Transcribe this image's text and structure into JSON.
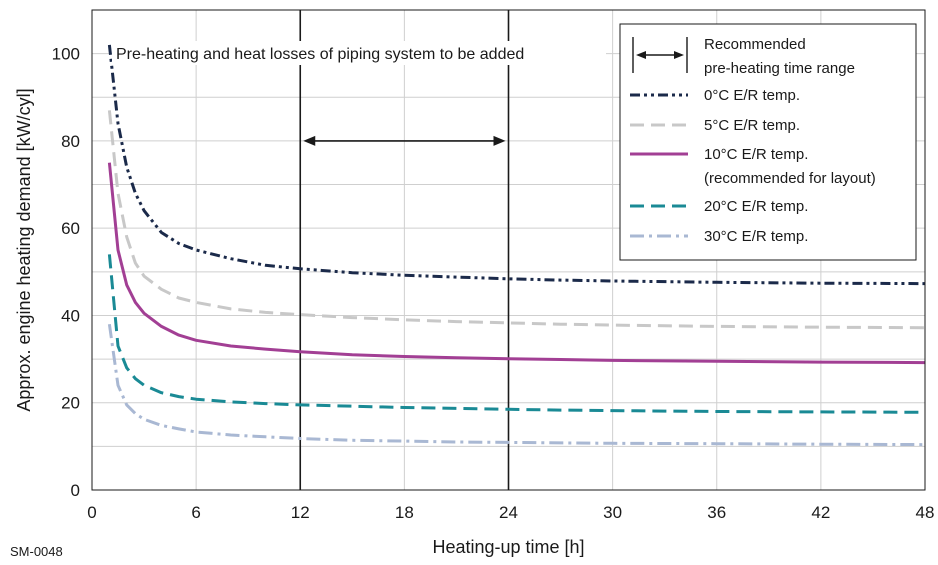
{
  "chart_data": {
    "type": "line",
    "title": "",
    "xlabel": "Heating-up time [h]",
    "ylabel": "Approx. engine heating demand [kW/cyl]",
    "xlim": [
      0,
      48
    ],
    "ylim": [
      0,
      110
    ],
    "xticks": [
      0,
      6,
      12,
      18,
      24,
      30,
      36,
      42,
      48
    ],
    "yticks": [
      0,
      20,
      40,
      60,
      80,
      100
    ],
    "grid": true,
    "legend_position": "top-right",
    "x": [
      1,
      1.5,
      2,
      2.5,
      3,
      4,
      5,
      6,
      8,
      10,
      12,
      15,
      18,
      21,
      24,
      27,
      30,
      36,
      42,
      48
    ],
    "series": [
      {
        "name": "0°C E/R temp.",
        "color": "#1b2a4a",
        "dash": "dash-dot-dot",
        "values": [
          102,
          84,
          74,
          68,
          64,
          59,
          56.5,
          55,
          53,
          51.5,
          50.7,
          49.8,
          49.2,
          48.8,
          48.4,
          48.1,
          47.9,
          47.6,
          47.4,
          47.3
        ]
      },
      {
        "name": "5°C E/R temp.",
        "color": "#c8c8c8",
        "dash": "dash",
        "values": [
          87,
          68,
          58,
          52,
          49,
          46,
          44,
          43,
          41.5,
          40.7,
          40.2,
          39.5,
          39,
          38.6,
          38.3,
          38,
          37.8,
          37.5,
          37.3,
          37.2
        ]
      },
      {
        "name": "10°C E/R temp.",
        "name2": "(recommended for layout)",
        "color": "#a23f94",
        "dash": "solid",
        "values": [
          75,
          55,
          47,
          43,
          40.5,
          37.5,
          35.5,
          34.3,
          33,
          32.3,
          31.7,
          31,
          30.6,
          30.3,
          30.1,
          29.9,
          29.7,
          29.5,
          29.3,
          29.2
        ]
      },
      {
        "name": "20°C E/R temp.",
        "color": "#1a8a95",
        "dash": "dash",
        "values": [
          54,
          33,
          28,
          25.5,
          24,
          22.3,
          21.4,
          20.8,
          20.2,
          19.8,
          19.5,
          19.2,
          18.9,
          18.7,
          18.5,
          18.3,
          18.2,
          18,
          17.9,
          17.8
        ]
      },
      {
        "name": "30°C E/R temp.",
        "color": "#a9b8d3",
        "dash": "dash-dot",
        "values": [
          38,
          24,
          19.5,
          17.5,
          16.2,
          14.8,
          14,
          13.3,
          12.6,
          12.2,
          11.8,
          11.4,
          11.2,
          11,
          10.9,
          10.8,
          10.7,
          10.6,
          10.5,
          10.4
        ]
      }
    ],
    "vertical_lines_x": [
      12,
      24
    ],
    "range_arrow": {
      "x_start": 12,
      "x_end": 24,
      "y": 80
    },
    "legend_header": [
      "Recommended",
      "pre-heating time range"
    ],
    "annotation": "Pre-heating and heat losses of piping system to be added",
    "code_label": "SM-0048"
  }
}
